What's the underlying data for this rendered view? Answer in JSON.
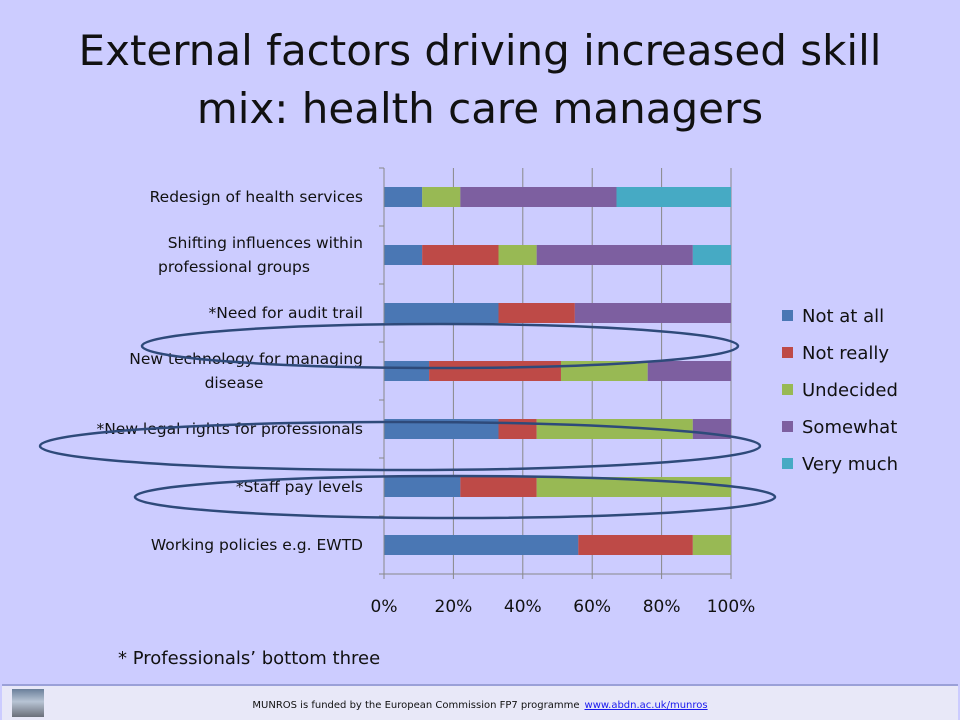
{
  "slide": {
    "title_line1": "External factors driving increased skill",
    "title_line2": "mix: health care managers",
    "footnote": "* Professionals’ bottom three"
  },
  "footer": {
    "text": "MUNROS  is funded by the European Commission  FP7 programme",
    "link": "www.abdn.ac.uk/munros"
  },
  "colors": {
    "Not at all": "#4a77b4",
    "Not really": "#be4a47",
    "Undecided": "#98b954",
    "Somewhat": "#7d5fa0",
    "Very much": "#46aac4",
    "highlight_ellipse": "#2e4a7a"
  },
  "chart_data": {
    "type": "bar",
    "orientation": "horizontal",
    "stacked": "100%",
    "categories": [
      "Working policies e.g. EWTD",
      "*Staff pay levels",
      "*New legal rights for professionals",
      "New technology for managing disease",
      "*Need for audit trail",
      "Shifting influences within professional groups",
      "Redesign of health services"
    ],
    "category_lines": [
      [
        "Working policies e.g. EWTD"
      ],
      [
        "*Staff pay levels"
      ],
      [
        "*New legal rights for professionals"
      ],
      [
        "New technology for managing",
        "disease"
      ],
      [
        "*Need for audit trail"
      ],
      [
        "Shifting influences within",
        "professional groups"
      ],
      [
        "Redesign of health services"
      ]
    ],
    "highlighted": [
      "*Staff pay levels",
      "*New legal rights for professionals",
      "*Need for audit trail"
    ],
    "series": [
      {
        "name": "Not at all",
        "values": [
          56,
          22,
          33,
          13,
          33,
          11,
          11
        ]
      },
      {
        "name": "Not really",
        "values": [
          33,
          22,
          11,
          38,
          22,
          22,
          0
        ]
      },
      {
        "name": "Undecided",
        "values": [
          11,
          56,
          45,
          25,
          0,
          11,
          11
        ]
      },
      {
        "name": "Somewhat",
        "values": [
          0,
          0,
          11,
          24,
          45,
          45,
          45
        ]
      },
      {
        "name": "Very much",
        "values": [
          0,
          0,
          0,
          0,
          0,
          11,
          33
        ]
      }
    ],
    "xlim": [
      0,
      100
    ],
    "xticks": [
      "0%",
      "20%",
      "40%",
      "60%",
      "80%",
      "100%"
    ],
    "grid": "vertical",
    "legend": "right"
  }
}
